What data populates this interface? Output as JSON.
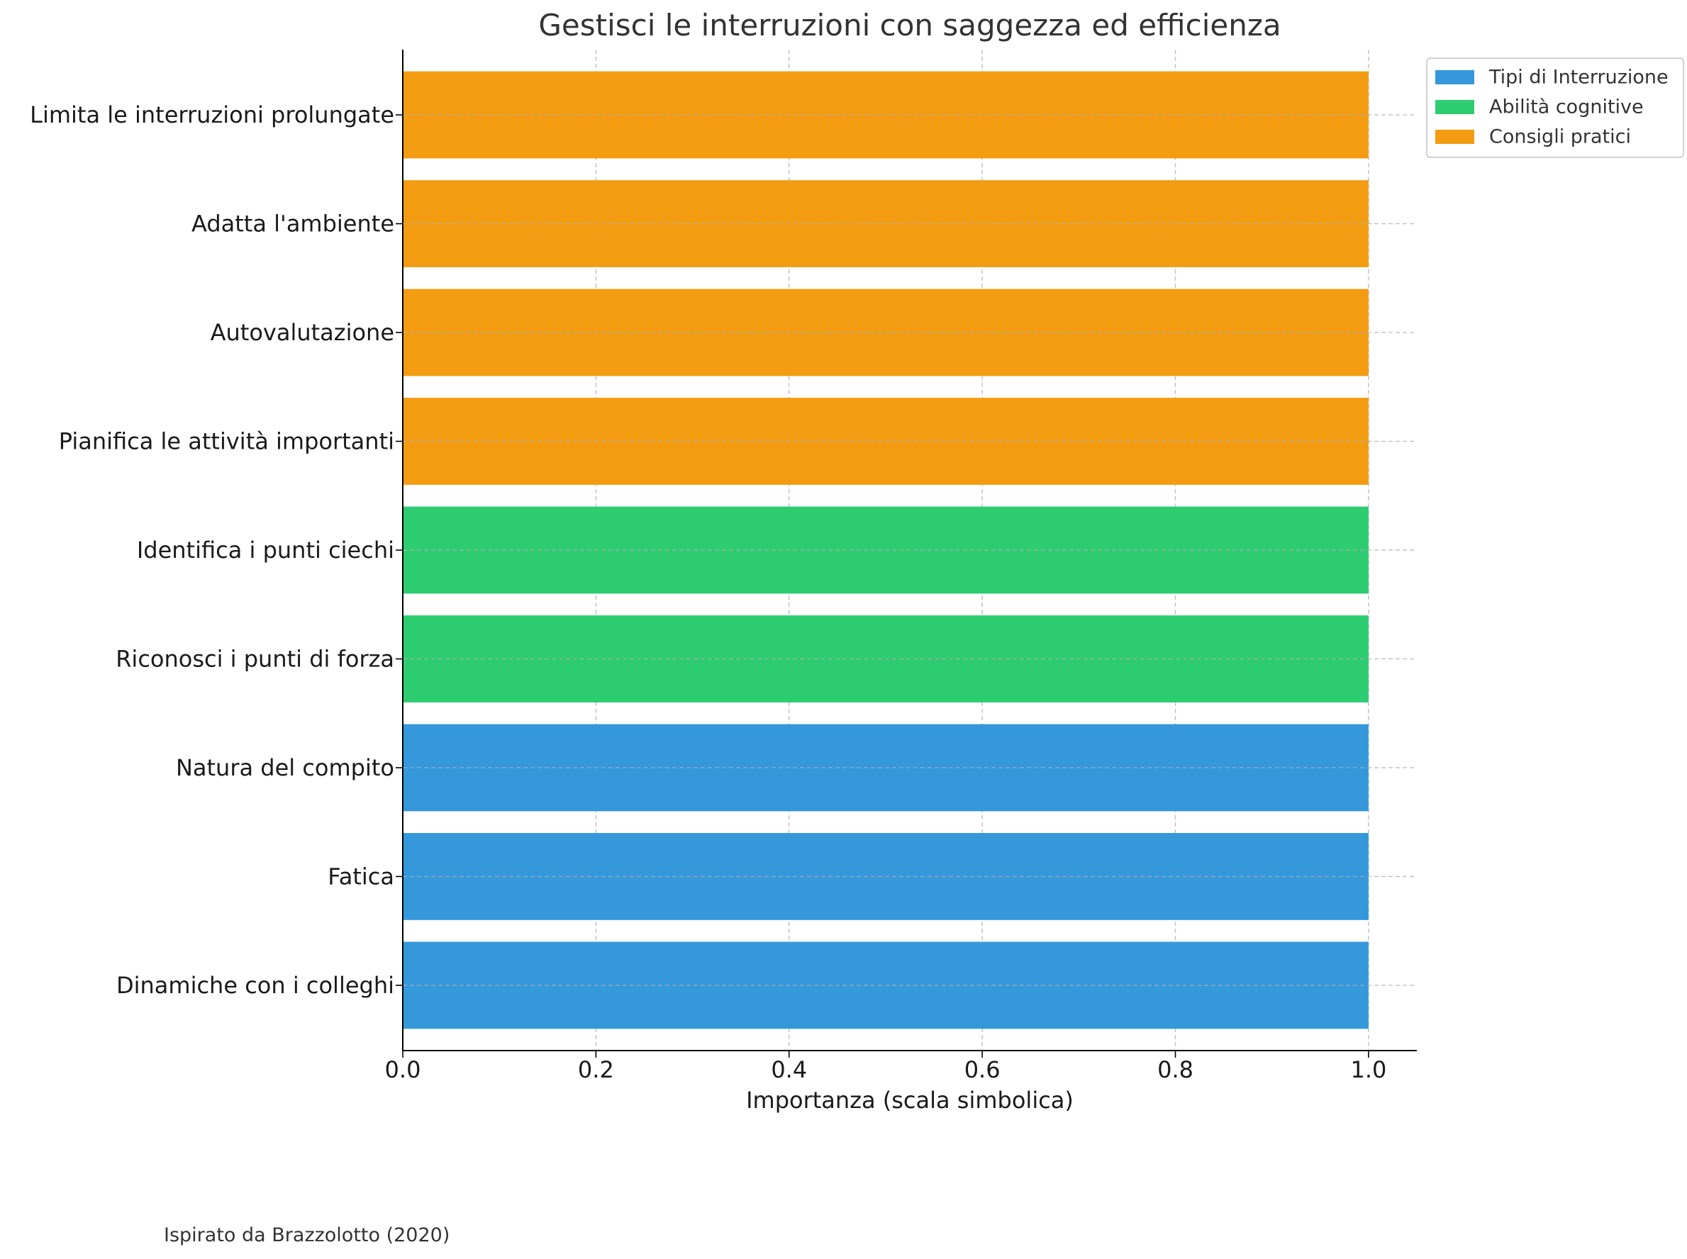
{
  "chart_data": {
    "type": "bar",
    "orientation": "horizontal",
    "title": "Gestisci le interruzioni con saggezza ed efficienza",
    "xlabel": "Importanza (scala simbolica)",
    "ylabel": "",
    "xlim": [
      0,
      1.05
    ],
    "xticks": [
      "0.0",
      "0.2",
      "0.4",
      "0.6",
      "0.8",
      "1.0"
    ],
    "xtick_values": [
      0,
      0.2,
      0.4,
      0.6,
      0.8,
      1.0
    ],
    "grid": true,
    "legend_position": "top-right",
    "categories": [
      "Dinamiche con i colleghi",
      "Fatica",
      "Natura del compito",
      "Riconosci i punti di forza",
      "Identifica i punti ciechi",
      "Pianifica le attività importanti",
      "Autovalutazione",
      "Adatta l'ambiente",
      "Limita le interruzioni prolungate"
    ],
    "values": [
      1,
      1,
      1,
      1,
      1,
      1,
      1,
      1,
      1
    ],
    "bar_groups": [
      0,
      0,
      0,
      1,
      1,
      2,
      2,
      2,
      2
    ],
    "legend": [
      {
        "name": "Tipi di Interruzione",
        "color": "#3498db"
      },
      {
        "name": "Abilità cognitive",
        "color": "#2ecc71"
      },
      {
        "name": "Consigli pratici",
        "color": "#f39c12"
      }
    ]
  },
  "footnote": "Ispirato da Brazzolotto (2020)"
}
